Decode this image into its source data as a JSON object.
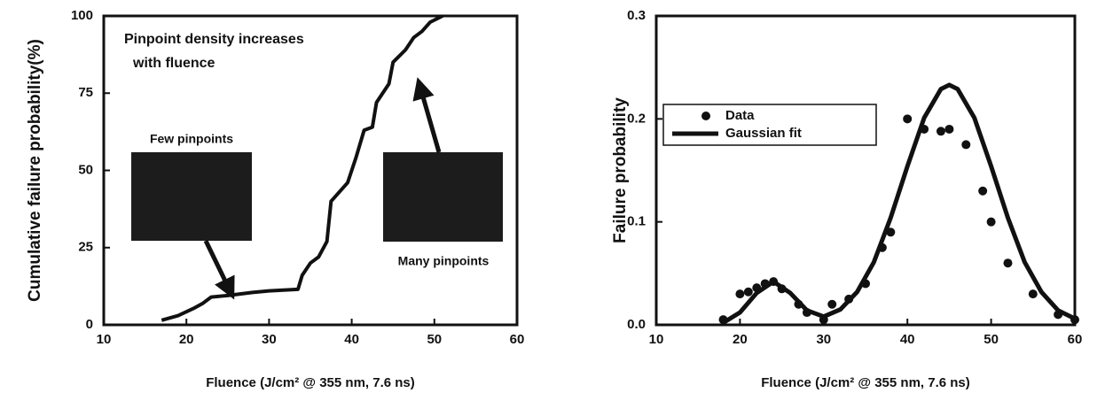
{
  "chart_data": [
    {
      "type": "line",
      "x_label": "Fluence (J/cm² @ 355 nm, 7.6 ns)",
      "y_label": "Cumulative failure probability(%)",
      "annotations": [
        "Pinpoint density increases",
        "with fluence",
        "Few pinpoints",
        "Many pinpoints"
      ],
      "x": [
        17,
        19,
        21,
        22,
        23,
        25,
        28,
        30,
        33.5,
        34,
        35,
        36,
        37,
        37.5,
        38.5,
        39.5,
        40.5,
        41.5,
        42.5,
        43,
        44.5,
        45,
        46.5,
        47.5,
        48.5,
        49.5,
        51
      ],
      "values": [
        1.5,
        3,
        5.5,
        7,
        9,
        9.5,
        10.5,
        11,
        11.5,
        16,
        20,
        22,
        27,
        40,
        43,
        46,
        54,
        63,
        64,
        72,
        78,
        85,
        89,
        93,
        95,
        98,
        100
      ],
      "color": "#111111",
      "xlim": [
        10,
        60
      ],
      "xticks": [
        10,
        20,
        30,
        40,
        50,
        60
      ],
      "ylim": [
        0,
        100
      ],
      "yticks": [
        0,
        25,
        50,
        75,
        100
      ]
    },
    {
      "type": "scatter",
      "x_label": "Fluence (J/cm² @ 355 nm, 7.6 ns)",
      "y_label": "Failure probability",
      "legend": "upper left",
      "series": [
        {
          "name": "Data",
          "type": "scatter",
          "color": "#111111",
          "x": [
            18,
            20,
            21,
            22,
            23,
            24,
            25,
            27,
            28,
            30,
            31,
            33,
            35,
            37,
            38,
            40,
            42,
            44,
            45,
            47,
            49,
            50,
            52,
            55,
            58,
            60
          ],
          "values": [
            0.005,
            0.03,
            0.032,
            0.036,
            0.04,
            0.042,
            0.035,
            0.02,
            0.012,
            0.005,
            0.02,
            0.025,
            0.04,
            0.075,
            0.09,
            0.2,
            0.19,
            0.188,
            0.19,
            0.175,
            0.13,
            0.1,
            0.06,
            0.03,
            0.01,
            0.005
          ]
        },
        {
          "name": "Gaussian fit",
          "type": "line",
          "color": "#111111",
          "x": [
            18,
            20,
            22,
            24,
            26,
            28,
            30,
            32,
            34,
            36,
            38,
            40,
            42,
            44,
            45,
            46,
            48,
            50,
            52,
            54,
            56,
            58,
            60
          ],
          "values": [
            0.002,
            0.012,
            0.031,
            0.042,
            0.031,
            0.014,
            0.008,
            0.015,
            0.032,
            0.061,
            0.104,
            0.154,
            0.201,
            0.229,
            0.233,
            0.229,
            0.201,
            0.154,
            0.104,
            0.061,
            0.032,
            0.014,
            0.006
          ]
        }
      ],
      "xlim": [
        10,
        60
      ],
      "xticks": [
        10,
        20,
        30,
        40,
        50,
        60
      ],
      "ylim": [
        0,
        0.3
      ],
      "yticks": [
        {
          "value": 0,
          "label": "0.0"
        },
        0.1,
        0.2,
        0.3
      ]
    }
  ]
}
